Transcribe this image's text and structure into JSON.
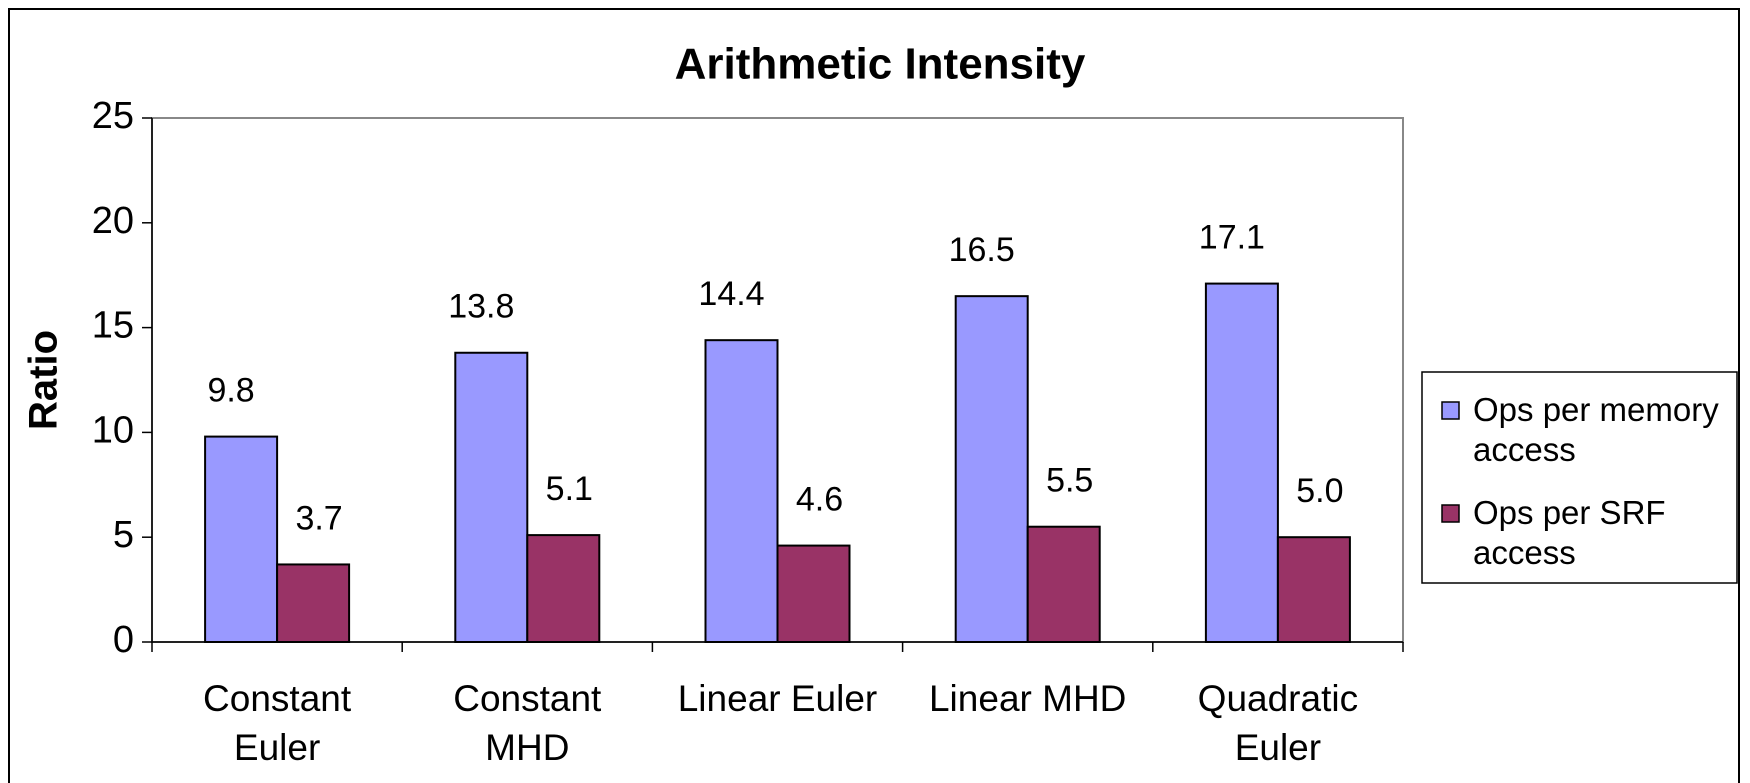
{
  "chart_data": {
    "type": "bar",
    "title": "Arithmetic Intensity",
    "y_label": "Ratio",
    "categories": [
      "Constant Euler",
      "Constant MHD",
      "Linear Euler",
      "Linear MHD",
      "Quadratic Euler"
    ],
    "series": [
      {
        "name": "Ops per memory access",
        "color": "#9999ff",
        "values": [
          9.8,
          13.8,
          14.4,
          16.5,
          17.1
        ]
      },
      {
        "name": "Ops per SRF access",
        "color": "#993366",
        "values": [
          3.7,
          5.1,
          4.6,
          5.5,
          5
        ],
        "value_labels": [
          "3.7",
          "5.1",
          "4.6",
          "5.5",
          "5.0"
        ]
      }
    ],
    "ylim": [
      0,
      25
    ],
    "yticks": [
      0,
      5,
      10,
      15,
      20,
      25
    ],
    "grid": false,
    "legend": "right"
  }
}
